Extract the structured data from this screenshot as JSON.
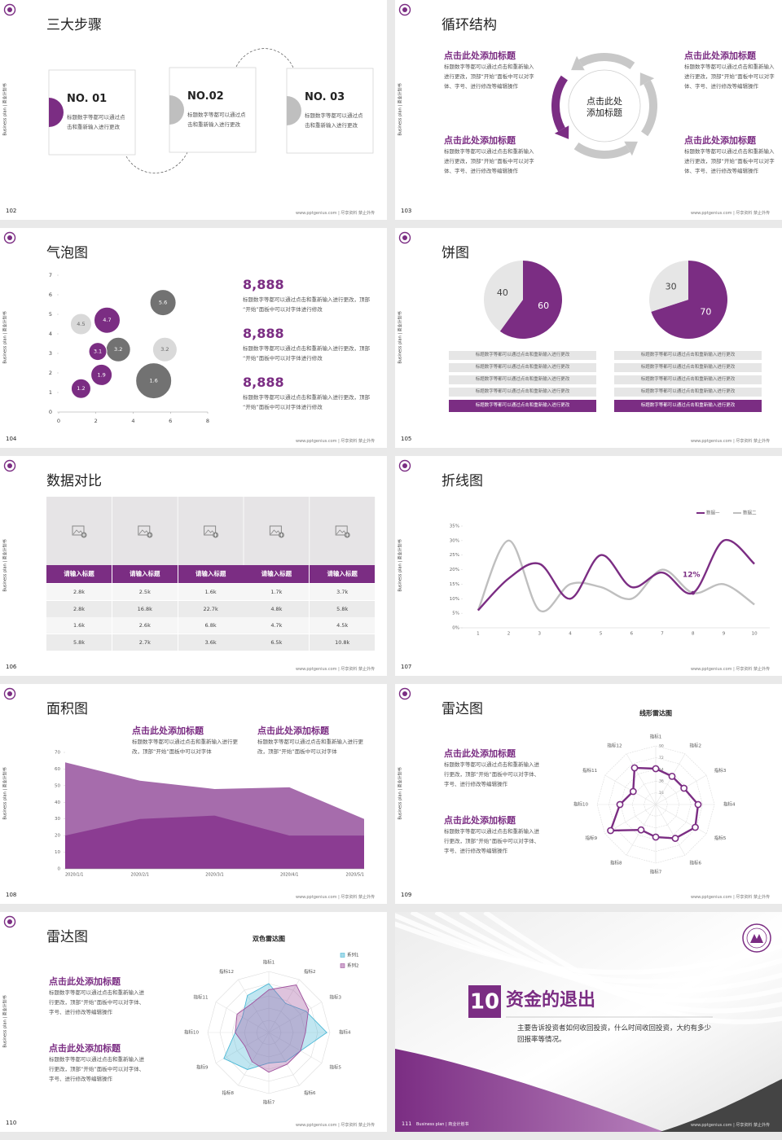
{
  "side_label": "Business plan | 商业计划书",
  "footer": "www.pptgenius.com | 尽享资料 禁止外传",
  "slides": [
    {
      "page": "102",
      "title": "三大步骤",
      "steps": [
        {
          "label": "NO. 01",
          "text": "标题数字等都可以通过点击和重新输入进行更改"
        },
        {
          "label": "NO.02",
          "text": "标题数字等都可以通过点击和重新输入进行更改"
        },
        {
          "label": "NO. 03",
          "text": "标题数字等都可以通过点击和重新输入进行更改"
        }
      ]
    },
    {
      "page": "103",
      "title": "循环结构",
      "center": [
        "点击此处",
        "添加标题"
      ],
      "blocks": [
        {
          "title": "点击此处添加标题",
          "text": "标题数字等都可以通过点击和重新输入进行更改，顶部“开始”面板中可以对字体、字号、进行修改等编辑操作"
        },
        {
          "title": "点击此处添加标题",
          "text": "标题数字等都可以通过点击和重新输入进行更改，顶部“开始”面板中可以对字体、字号、进行修改等编辑操作"
        },
        {
          "title": "点击此处添加标题",
          "text": "标题数字等都可以通过点击和重新输入进行更改，顶部“开始”面板中可以对字体、字号、进行修改等编辑操作"
        },
        {
          "title": "点击此处添加标题",
          "text": "标题数字等都可以通过点击和重新输入进行更改，顶部“开始”面板中可以对字体、字号、进行修改等编辑操作"
        }
      ]
    },
    {
      "page": "104",
      "title": "气泡图",
      "chart_data": {
        "type": "bubble",
        "xlim": [
          0,
          8
        ],
        "xticks": [
          0,
          2,
          4,
          6,
          8
        ],
        "ylim": [
          0,
          7
        ],
        "yticks": [
          0,
          1,
          2,
          3,
          4,
          5,
          6,
          7
        ],
        "series": [
          {
            "color": "#d9d9d9",
            "x": [
              1.2,
              5.7
            ],
            "values": [
              4.5,
              3.2
            ],
            "sizes": [
              13,
              15
            ]
          },
          {
            "color": "#727272",
            "x": [
              3.2,
              5.6,
              5.1
            ],
            "values": [
              3.2,
              5.6,
              1.6
            ],
            "sizes": [
              15,
              16,
              22
            ]
          },
          {
            "color": "#7b2d83",
            "x": [
              1.2,
              2.3,
              2.1,
              2.6
            ],
            "values": [
              1.2,
              1.9,
              3.1,
              4.7
            ],
            "sizes": [
              12,
              13,
              11,
              16
            ]
          }
        ]
      },
      "stats": [
        {
          "value": "8,888",
          "text": "标题数字等都可以通过点击和重新输入进行更改，顶部“开始”面板中可以对字体进行修改"
        },
        {
          "value": "8,888",
          "text": "标题数字等都可以通过点击和重新输入进行更改，顶部“开始”面板中可以对字体进行修改"
        },
        {
          "value": "8,888",
          "text": "标题数字等都可以通过点击和重新输入进行更改，顶部“开始”面板中可以对字体进行修改"
        }
      ]
    },
    {
      "page": "105",
      "title": "饼图",
      "pies": [
        {
          "chart_data": {
            "type": "pie",
            "values": [
              60,
              40
            ],
            "colors": [
              "#7b2d83",
              "#e6e6e6"
            ]
          },
          "rows": [
            "标题数字等都可以通过点击和重新输入进行更改",
            "标题数字等都可以通过点击和重新输入进行更改",
            "标题数字等都可以通过点击和重新输入进行更改",
            "标题数字等都可以通过点击和重新输入进行更改",
            "标题数字等都可以通过点击和重新输入进行更改"
          ]
        },
        {
          "chart_data": {
            "type": "pie",
            "values": [
              70,
              30
            ],
            "colors": [
              "#7b2d83",
              "#e6e6e6"
            ]
          },
          "rows": [
            "标题数字等都可以通过点击和重新输入进行更改",
            "标题数字等都可以通过点击和重新输入进行更改",
            "标题数字等都可以通过点击和重新输入进行更改",
            "标题数字等都可以通过点击和重新输入进行更改",
            "标题数字等都可以通过点击和重新输入进行更改"
          ]
        }
      ]
    },
    {
      "page": "106",
      "title": "数据对比",
      "table": {
        "header": [
          "请输入标题",
          "请输入标题",
          "请输入标题",
          "请输入标题",
          "请输入标题"
        ],
        "rows": [
          [
            "2.8k",
            "2.5k",
            "1.6k",
            "1.7k",
            "3.7k"
          ],
          [
            "2.8k",
            "16.8k",
            "22.7k",
            "4.8k",
            "5.8k"
          ],
          [
            "1.6k",
            "2.6k",
            "6.8k",
            "4.7k",
            "4.5k"
          ],
          [
            "5.8k",
            "2.7k",
            "3.6k",
            "6.5k",
            "10.8k"
          ]
        ]
      }
    },
    {
      "page": "107",
      "title": "折线图",
      "chart_data": {
        "type": "line",
        "categories": [
          1,
          2,
          3,
          4,
          5,
          6,
          7,
          8,
          9,
          10
        ],
        "ylim": [
          0,
          35
        ],
        "yticks": [
          {
            "value": 0,
            "label": "0%"
          },
          {
            "value": 5,
            "label": "5%"
          },
          {
            "value": 10,
            "label": "10%"
          },
          {
            "value": 15,
            "label": "15%"
          },
          {
            "value": 20,
            "label": "20%"
          },
          {
            "value": 25,
            "label": "25%"
          },
          {
            "value": 30,
            "label": "30%"
          },
          {
            "value": 35,
            "label": "35%"
          }
        ],
        "legend": "top-right",
        "series": [
          {
            "name": "数据一",
            "color": "#7b2d83",
            "values": [
              6,
              17,
              22,
              10,
              25,
              14,
              19,
              12,
              30,
              22
            ],
            "value_labels": [
              null,
              null,
              null,
              null,
              null,
              null,
              null,
              "12%",
              null,
              null
            ]
          },
          {
            "name": "数据二",
            "color": "#bfbfbf",
            "values": [
              6,
              30,
              6,
              15,
              14,
              10,
              20,
              12,
              15,
              8
            ]
          }
        ]
      }
    },
    {
      "page": "108",
      "title": "面积图",
      "blocks": [
        {
          "title": "点击此处添加标题",
          "text": "标题数字等都可以通过点击和重新输入进行更改，顶部“开始”面板中可以对字体"
        },
        {
          "title": "点击此处添加标题",
          "text": "标题数字等都可以通过点击和重新输入进行更改，顶部“开始”面板中可以对字体"
        }
      ],
      "chart_data": {
        "type": "area",
        "categories": [
          "2020/1/1",
          "2020/2/1",
          "2020/3/1",
          "2020/4/1",
          "2020/5/1"
        ],
        "ylim": [
          0,
          70
        ],
        "yticks": [
          0,
          10,
          20,
          30,
          40,
          50,
          60,
          70
        ],
        "series": [
          {
            "color": "#a66cac",
            "values": [
              64,
              53,
              48,
              49,
              30
            ]
          },
          {
            "color": "#8b3c92",
            "values": [
              20,
              30,
              32,
              20,
              20
            ]
          }
        ]
      }
    },
    {
      "page": "109",
      "title": "雷达图",
      "blocks": [
        {
          "title": "点击此处添加标题",
          "text": "标题数字等都可以通过点击和重新输入进行更改，顶部“开始”面板中可以对字体、字号、进行修改等编辑操作"
        },
        {
          "title": "点击此处添加标题",
          "text": "标题数字等都可以通过点击和重新输入进行更改，顶部“开始”面板中可以对字体、字号、进行修改等编辑操作"
        }
      ],
      "chart_data": {
        "type": "radar",
        "title": "线形雷达图",
        "categories": [
          "指标1",
          "指标2",
          "指标3",
          "指标4",
          "指标5",
          "指标6",
          "指标7",
          "指标8",
          "指标9",
          "指标10",
          "指标11",
          "指标12"
        ],
        "rlim": [
          0,
          90
        ],
        "rticks": [
          18,
          36,
          54,
          72,
          90
        ],
        "series": [
          {
            "color": "#7b2d83",
            "values": [
              55,
              50,
              50,
              65,
              70,
              60,
              50,
              45,
              80,
              55,
              40,
              65
            ]
          }
        ]
      }
    },
    {
      "page": "110",
      "title": "雷达图",
      "blocks": [
        {
          "title": "点击此处添加标题",
          "text": "标题数字等都可以通过点击和重新输入进行更改，顶部“开始”面板中可以对字体、字号、进行修改等编辑操作"
        },
        {
          "title": "点击此处添加标题",
          "text": "标题数字等都可以通过点击和重新输入进行更改，顶部“开始”面板中可以对字体、字号、进行修改等编辑操作"
        }
      ],
      "chart_data": {
        "type": "radar",
        "title": "双色雷达图",
        "categories": [
          "指标1",
          "指标2",
          "指标3",
          "指标4",
          "指标5",
          "指标6",
          "指标7",
          "指标8",
          "指标9",
          "指标10",
          "指标11",
          "指标12"
        ],
        "rlim": [
          0,
          100
        ],
        "rticks": [
          20,
          40,
          60,
          80,
          100
        ],
        "legend": "top-right",
        "series": [
          {
            "name": "系列1",
            "color": "#4bb8d6",
            "values": [
              80,
              55,
              70,
              95,
              60,
              55,
              50,
              70,
              85,
              55,
              50,
              70
            ]
          },
          {
            "name": "系列2",
            "color": "#a0529e",
            "values": [
              70,
              90,
              75,
              60,
              60,
              60,
              65,
              55,
              45,
              55,
              60,
              55
            ]
          }
        ]
      }
    },
    {
      "page": "111",
      "number": "10",
      "title": "资金的退出",
      "text": "主要告诉投资者如何收回投资，什么时间收回投资，大约有多少回报率等情况。"
    }
  ]
}
